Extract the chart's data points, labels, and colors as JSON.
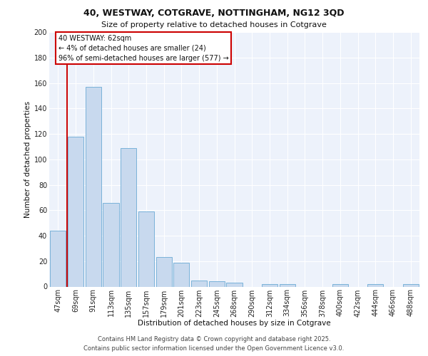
{
  "title1": "40, WESTWAY, COTGRAVE, NOTTINGHAM, NG12 3QD",
  "title2": "Size of property relative to detached houses in Cotgrave",
  "xlabel": "Distribution of detached houses by size in Cotgrave",
  "ylabel": "Number of detached properties",
  "categories": [
    "47sqm",
    "69sqm",
    "91sqm",
    "113sqm",
    "135sqm",
    "157sqm",
    "179sqm",
    "201sqm",
    "223sqm",
    "245sqm",
    "268sqm",
    "290sqm",
    "312sqm",
    "334sqm",
    "356sqm",
    "378sqm",
    "400sqm",
    "422sqm",
    "444sqm",
    "466sqm",
    "488sqm"
  ],
  "values": [
    44,
    118,
    157,
    66,
    109,
    59,
    23,
    19,
    5,
    4,
    3,
    0,
    2,
    2,
    0,
    0,
    2,
    0,
    2,
    0,
    2
  ],
  "bar_color": "#c8d9ee",
  "bar_edge_color": "#6aaad4",
  "highlight_line_color": "#cc0000",
  "annotation_box_color": "#cc0000",
  "annotation_title": "40 WESTWAY: 62sqm",
  "annotation_line1": "← 4% of detached houses are smaller (24)",
  "annotation_line2": "96% of semi-detached houses are larger (577) →",
  "ylim": [
    0,
    200
  ],
  "yticks": [
    0,
    20,
    40,
    60,
    80,
    100,
    120,
    140,
    160,
    180,
    200
  ],
  "background_color": "#edf2fb",
  "grid_color": "#ffffff",
  "footer1": "Contains HM Land Registry data © Crown copyright and database right 2025.",
  "footer2": "Contains public sector information licensed under the Open Government Licence v3.0.",
  "title1_fontsize": 9,
  "title2_fontsize": 8,
  "axis_label_fontsize": 7.5,
  "tick_fontsize": 7,
  "annotation_fontsize": 7,
  "footer_fontsize": 6
}
